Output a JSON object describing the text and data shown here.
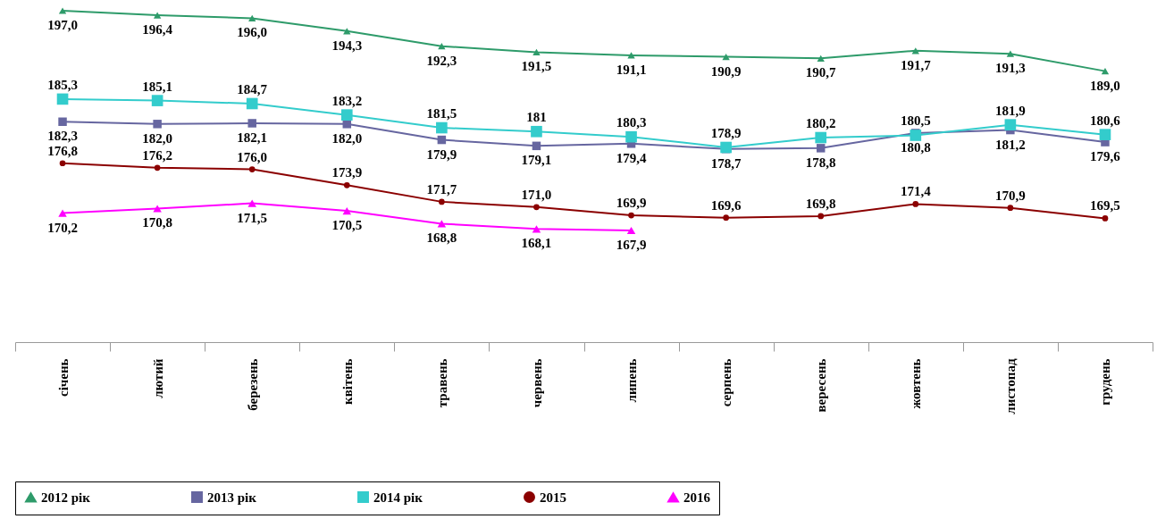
{
  "chart_data": {
    "type": "line",
    "categories": [
      "січень",
      "лютий",
      "березень",
      "квітень",
      "травень",
      "червень",
      "липень",
      "серпень",
      "вересень",
      "жовтень",
      "листопад",
      "грудень"
    ],
    "tick_labels": "x",
    "grid": false,
    "legend": "bottom",
    "data_labels": true,
    "series": [
      {
        "name": "2012 рік",
        "color": "#2e9b6a",
        "marker": "triangle",
        "values": [
          197.0,
          196.4,
          196.0,
          194.3,
          192.3,
          191.5,
          191.1,
          190.9,
          190.7,
          191.7,
          191.3,
          189.0
        ],
        "value_labels": [
          "197,0",
          "196,4",
          "196,0",
          "194,3",
          "192,3",
          "191,5",
          "191,1",
          "190,9",
          "190,7",
          "191,7",
          "191,3",
          "189,0"
        ]
      },
      {
        "name": "2013 рік",
        "color": "#6666a0",
        "marker": "square",
        "values": [
          182.3,
          182.0,
          182.1,
          182.0,
          179.9,
          179.1,
          179.4,
          178.7,
          178.8,
          180.8,
          181.2,
          179.6
        ],
        "value_labels": [
          "182,3",
          "182,0",
          "182,1",
          "182,0",
          "179,9",
          "179,1",
          "179,4",
          "178,7",
          "178,8",
          "180,8",
          "181,2",
          "179,6"
        ]
      },
      {
        "name": "2014 рік",
        "color": "#33cccc",
        "marker": "square",
        "values": [
          185.3,
          185.1,
          184.7,
          183.2,
          181.5,
          181,
          180.3,
          178.9,
          180.2,
          180.5,
          181.9,
          180.6
        ],
        "value_labels": [
          "185,3",
          "185,1",
          "184,7",
          "183,2",
          "181,5",
          "181",
          "180,3",
          "178,9",
          "180,2",
          "180,5",
          "181,9",
          "180,6"
        ]
      },
      {
        "name": "2015",
        "color": "#8b0000",
        "marker": "circle",
        "values": [
          176.8,
          176.2,
          176.0,
          173.9,
          171.7,
          171.0,
          169.9,
          169.6,
          169.8,
          171.4,
          170.9,
          169.5
        ],
        "value_labels": [
          "176,8",
          "176,2",
          "176,0",
          "173,9",
          "171,7",
          "171,0",
          "169,9",
          "169,6",
          "169,8",
          "171,4",
          "170,9",
          "169,5"
        ]
      },
      {
        "name": "2016",
        "color": "#ff00ff",
        "marker": "triangle",
        "values": [
          170.2,
          170.8,
          171.5,
          170.5,
          168.8,
          168.1,
          167.9,
          null,
          null,
          null,
          null,
          null
        ],
        "value_labels": [
          "170,2",
          "170,8",
          "171,5",
          "170,5",
          "168,8",
          "168,1",
          "167,9",
          null,
          null,
          null,
          null,
          null
        ]
      }
    ]
  }
}
